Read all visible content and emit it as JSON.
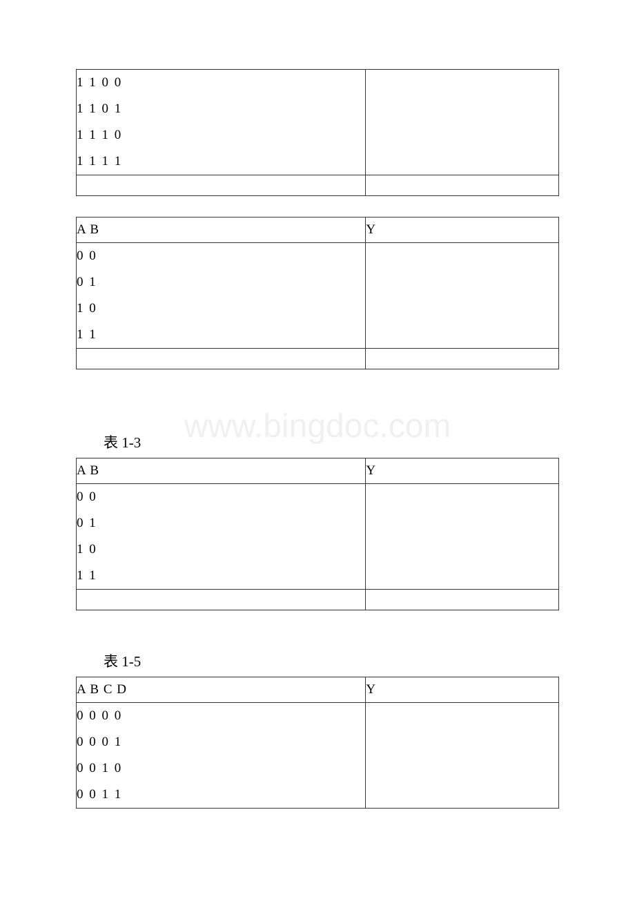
{
  "watermark": "www.bingdoc.com",
  "tables": [
    {
      "col1_header": "",
      "col2_header": "",
      "rows": [
        {
          "left": "1 1 0 0",
          "right": ""
        },
        {
          "left": "1 1 0 1",
          "right": ""
        },
        {
          "left": "1 1 1 0",
          "right": ""
        },
        {
          "left": "1 1 1 1",
          "right": ""
        }
      ]
    },
    {
      "col1_header": "A B",
      "col2_header": "Y",
      "rows": [
        {
          "left": "0 0",
          "right": ""
        },
        {
          "left": "0 1",
          "right": ""
        },
        {
          "left": "1 0",
          "right": ""
        },
        {
          "left": "1 1",
          "right": ""
        }
      ]
    },
    {
      "caption": "表 1-3",
      "col1_header": "A B",
      "col2_header": "Y",
      "rows": [
        {
          "left": "0 0",
          "right": ""
        },
        {
          "left": "0 1",
          "right": ""
        },
        {
          "left": "1 0",
          "right": ""
        },
        {
          "left": "1 1",
          "right": ""
        }
      ]
    },
    {
      "caption": "表 1-5",
      "col1_header": "A B C D",
      "col2_header": "Y",
      "rows": [
        {
          "left": "0 0 0 0",
          "right": ""
        },
        {
          "left": "0 0 0 1",
          "right": ""
        },
        {
          "left": "0 0 1 0",
          "right": ""
        },
        {
          "left": "0 0 1 1",
          "right": ""
        }
      ]
    }
  ],
  "colors": {
    "background": "#ffffff",
    "border": "#333333",
    "text": "#000000",
    "watermark": "#f0f0f0"
  }
}
